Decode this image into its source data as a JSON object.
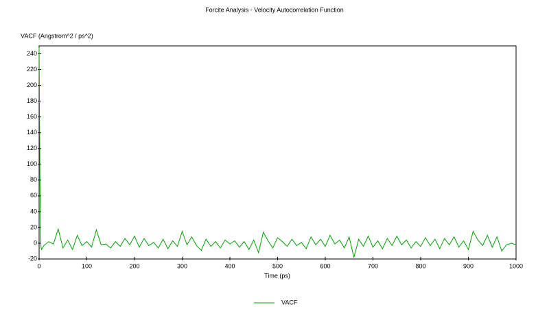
{
  "chart_data": {
    "type": "line",
    "title": "Forcite Analysis - Velocity Autocorrelation Function",
    "y_label": "VACF (Angstrom^2 / ps^2)",
    "x_label": "Time (ps)",
    "x": [
      0,
      1,
      2,
      3,
      4,
      5,
      10,
      20,
      30,
      40,
      50,
      60,
      70,
      80,
      90,
      100,
      110,
      120,
      130,
      140,
      150,
      160,
      170,
      180,
      190,
      200,
      210,
      220,
      230,
      240,
      250,
      260,
      270,
      280,
      290,
      300,
      310,
      320,
      330,
      340,
      350,
      360,
      370,
      380,
      390,
      400,
      410,
      420,
      430,
      440,
      450,
      460,
      470,
      480,
      490,
      500,
      510,
      520,
      530,
      540,
      550,
      560,
      570,
      580,
      590,
      600,
      610,
      620,
      630,
      640,
      650,
      660,
      670,
      680,
      690,
      700,
      710,
      720,
      730,
      740,
      750,
      760,
      770,
      780,
      790,
      800,
      810,
      820,
      830,
      840,
      850,
      860,
      870,
      880,
      890,
      900,
      910,
      920,
      930,
      940,
      950,
      960,
      970,
      980,
      990,
      1000
    ],
    "series": [
      {
        "name": "VACF",
        "color": "#00a000",
        "values": [
          248,
          150,
          60,
          10,
          -5,
          -8,
          -3,
          2,
          -1,
          18,
          -6,
          4,
          -8,
          10,
          -3,
          2,
          -5,
          17,
          -2,
          -1,
          -6,
          2,
          -4,
          6,
          -2,
          9,
          -5,
          6,
          -3,
          1,
          -6,
          5,
          -7,
          3,
          -4,
          15,
          -2,
          8,
          -3,
          -9,
          5,
          -4,
          2,
          -6,
          4,
          -1,
          3,
          -5,
          2,
          -8,
          4,
          -12,
          14,
          3,
          -6,
          7,
          2,
          -4,
          5,
          -3,
          1,
          -7,
          8,
          -2,
          5,
          -4,
          10,
          -1,
          4,
          -6,
          8,
          -18,
          5,
          -4,
          9,
          -5,
          3,
          -7,
          6,
          -3,
          9,
          -2,
          4,
          -6,
          2,
          -4,
          7,
          -3,
          5,
          -7,
          6,
          -2,
          8,
          -5,
          3,
          -8,
          15,
          4,
          -3,
          10,
          -5,
          8,
          -10,
          -2,
          0,
          -2
        ]
      }
    ],
    "xlim": [
      0,
      1000
    ],
    "xticks": [
      0,
      100,
      200,
      300,
      400,
      500,
      600,
      700,
      800,
      900,
      1000
    ],
    "ylim": [
      -20,
      250
    ],
    "yticks": [
      -20,
      0,
      20,
      40,
      60,
      80,
      100,
      120,
      140,
      160,
      180,
      200,
      220,
      240
    ],
    "grid": false,
    "legend": "bottom"
  }
}
